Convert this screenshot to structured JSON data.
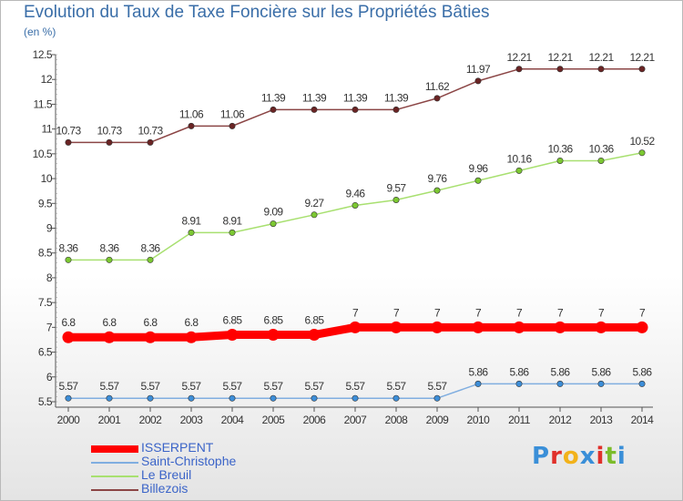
{
  "title": "Evolution du Taux de Taxe Foncière sur les Propriétés Bâties",
  "unit": "(en %)",
  "logo": {
    "letters": [
      "P",
      "r",
      "o",
      "x",
      "i",
      "t",
      "i"
    ],
    "colors": [
      "#3a8fd8",
      "#e0302a",
      "#f2b21a",
      "#3a8fd8",
      "#e0302a",
      "#7cbc2a",
      "#3a8fd8"
    ]
  },
  "chart_data": {
    "type": "line",
    "title": "Evolution du Taux de Taxe Foncière sur les Propriétés Bâties",
    "ylabel": "(en %)",
    "xlabel": "",
    "ylim": [
      5.5,
      12.5
    ],
    "yticks": [
      "5.5",
      "6",
      "6.5",
      "7",
      "7.5",
      "8",
      "8.5",
      "9",
      "9.5",
      "10",
      "10.5",
      "11",
      "11.5",
      "12",
      "12.5"
    ],
    "grid": false,
    "legend_position": "bottom-left",
    "x": [
      "2000",
      "2001",
      "2002",
      "2003",
      "2004",
      "2005",
      "2006",
      "2007",
      "2008",
      "2009",
      "2010",
      "2011",
      "2012",
      "2013",
      "2014"
    ],
    "series": [
      {
        "name": "ISSERPENT",
        "color": "#ff0000",
        "marker_color": "#ff0000",
        "thick": true,
        "values": [
          6.8,
          6.8,
          6.8,
          6.8,
          6.85,
          6.85,
          6.85,
          7,
          7,
          7,
          7,
          7,
          7,
          7,
          7
        ],
        "labels": [
          "6.8",
          "6.8",
          "6.8",
          "6.8",
          "6.85",
          "6.85",
          "6.85",
          "7",
          "7",
          "7",
          "7",
          "7",
          "7",
          "7",
          "7"
        ]
      },
      {
        "name": "Saint-Christophe",
        "color": "#80aee0",
        "marker_color": "#3d8ed8",
        "values": [
          5.57,
          5.57,
          5.57,
          5.57,
          5.57,
          5.57,
          5.57,
          5.57,
          5.57,
          5.57,
          5.86,
          5.86,
          5.86,
          5.86,
          5.86
        ],
        "labels": [
          "5.57",
          "5.57",
          "5.57",
          "5.57",
          "5.57",
          "5.57",
          "5.57",
          "5.57",
          "5.57",
          "5.57",
          "5.86",
          "5.86",
          "5.86",
          "5.86",
          "5.86"
        ]
      },
      {
        "name": "Le Breuil",
        "color": "#a8e070",
        "marker_color": "#7cc832",
        "values": [
          8.36,
          8.36,
          8.36,
          8.91,
          8.91,
          9.09,
          9.27,
          9.46,
          9.57,
          9.76,
          9.96,
          10.16,
          10.36,
          10.36,
          10.52
        ],
        "labels": [
          "8.36",
          "8.36",
          "8.36",
          "8.91",
          "8.91",
          "9.09",
          "9.27",
          "9.46",
          "9.57",
          "9.76",
          "9.96",
          "10.16",
          "10.36",
          "10.36",
          "10.52"
        ]
      },
      {
        "name": "Billezois",
        "color": "#8b4545",
        "marker_color": "#6a2424",
        "values": [
          10.73,
          10.73,
          10.73,
          11.06,
          11.06,
          11.39,
          11.39,
          11.39,
          11.39,
          11.62,
          11.97,
          12.21,
          12.21,
          12.21,
          12.21
        ],
        "labels": [
          "10.73",
          "10.73",
          "10.73",
          "11.06",
          "11.06",
          "11.39",
          "11.39",
          "11.39",
          "11.39",
          "11.62",
          "11.97",
          "12.21",
          "12.21",
          "12.21",
          "12.21"
        ]
      }
    ]
  }
}
